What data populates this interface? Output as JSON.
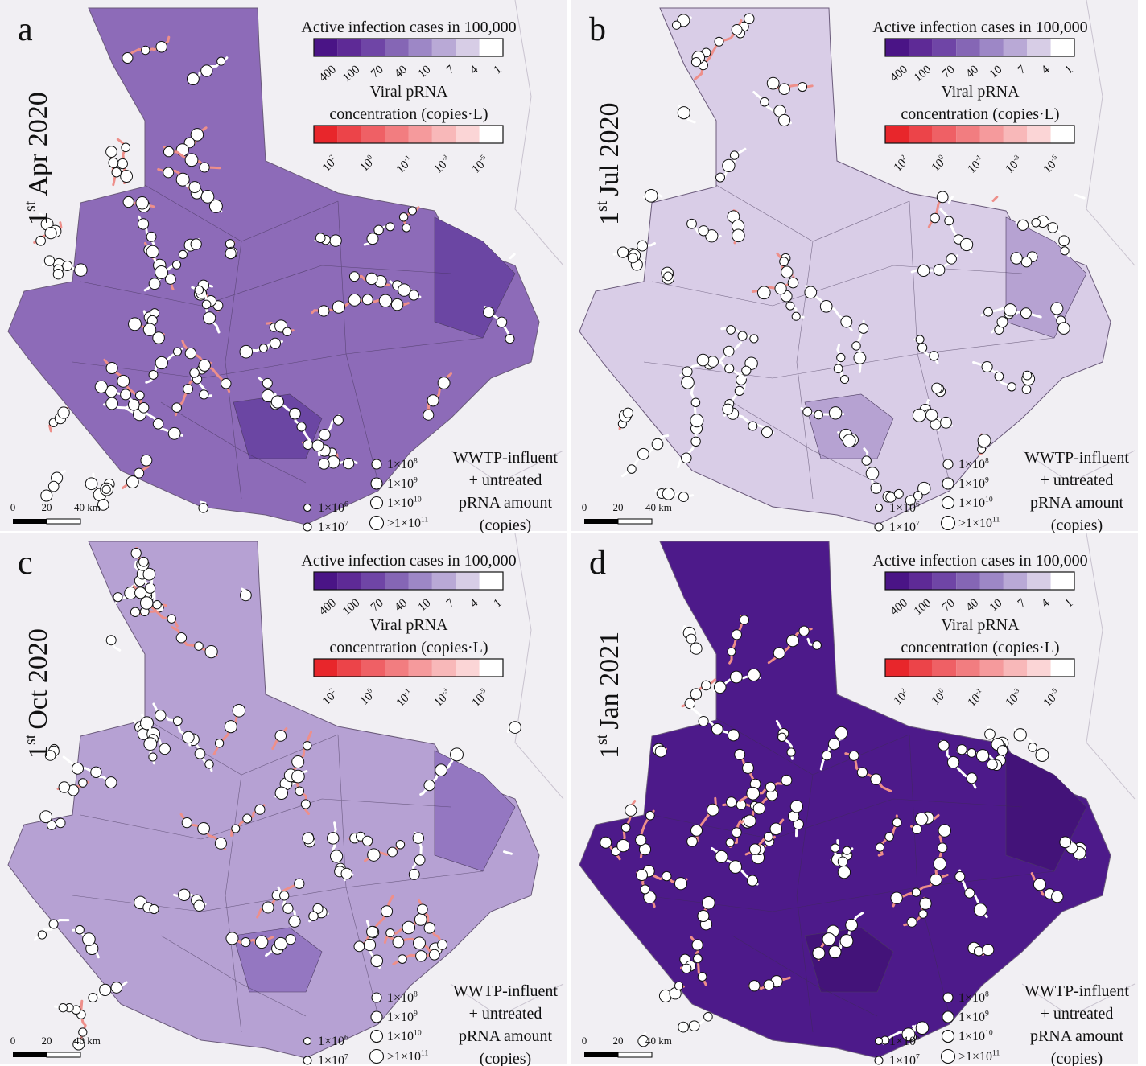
{
  "panels": [
    {
      "letter": "a",
      "date": {
        "day": "1",
        "suffix": "st",
        "rest": "Apr 2020"
      },
      "fill": "#8d6bb8",
      "shade": "#6b46a3"
    },
    {
      "letter": "b",
      "date": {
        "day": "1",
        "suffix": "st",
        "rest": "Jul 2020"
      },
      "fill": "#d9cde7",
      "shade": "#b6a2d2"
    },
    {
      "letter": "c",
      "date": {
        "day": "1",
        "suffix": "st",
        "rest": "Oct 2020"
      },
      "fill": "#b6a1d3",
      "shade": "#9477c1"
    },
    {
      "letter": "d",
      "date": {
        "day": "1",
        "suffix": "st",
        "rest": "Jan 2021"
      },
      "fill": "#4d1a8a",
      "shade": "#431379"
    }
  ],
  "cases_legend": {
    "title": "Active infection cases in 100,000",
    "colors": [
      "#4a1486",
      "#5e2a96",
      "#6f45a6",
      "#8566b5",
      "#9d87c6",
      "#b9a9d6",
      "#d7cde6",
      "#ffffff"
    ],
    "labels": [
      400,
      100,
      70,
      40,
      10,
      7,
      4,
      1
    ]
  },
  "conc_legend": {
    "title_lines": [
      "Viral pRNA",
      "concentration (copies·L)"
    ],
    "colors": [
      "#e8262b",
      "#ec4449",
      "#ef6065",
      "#f27d80",
      "#f59a9c",
      "#f8b8b9",
      "#fbd5d6",
      "#ffffff"
    ],
    "labels": [
      {
        "base": "10",
        "exp": "2"
      },
      {
        "base": "10",
        "exp": "0"
      },
      {
        "base": "10",
        "exp": "-1"
      },
      {
        "base": "10",
        "exp": "-3"
      },
      {
        "base": "10",
        "exp": "-5"
      }
    ]
  },
  "size_legend": {
    "title_lines": [
      "WWTP-influent",
      "+ untreated",
      "pRNA amount",
      "(copies)"
    ],
    "items": [
      {
        "base": "1×10",
        "exp": "6"
      },
      {
        "base": "1×10",
        "exp": "7"
      },
      {
        "base": "1×10",
        "exp": "8"
      },
      {
        "base": "1×10",
        "exp": "9"
      },
      {
        "base": "1×10",
        "exp": "10"
      },
      {
        "base": ">1×10",
        "exp": "11"
      }
    ]
  },
  "scale_bar": {
    "labels": [
      "0",
      "20",
      "40 km"
    ]
  }
}
